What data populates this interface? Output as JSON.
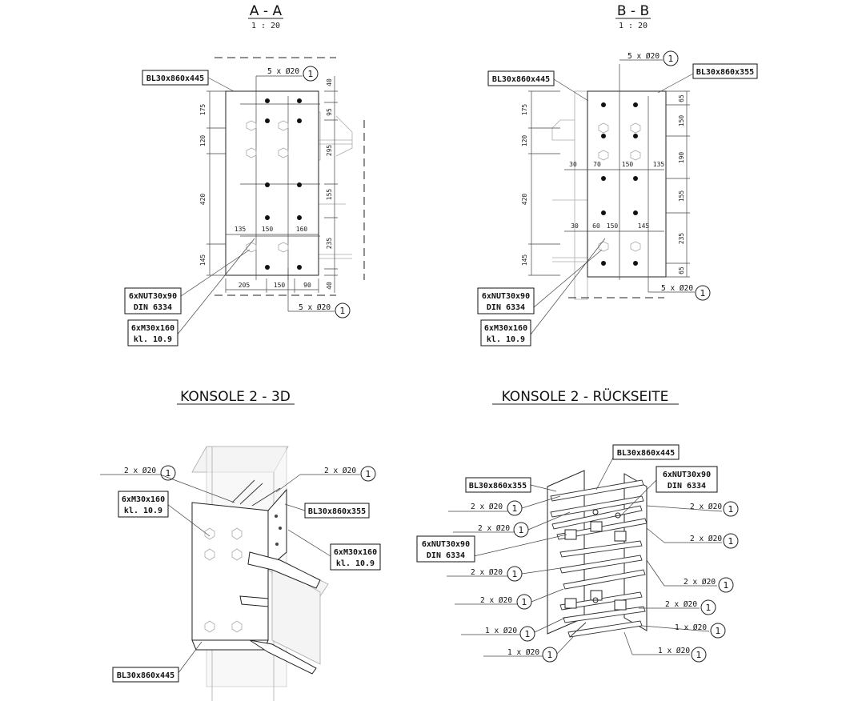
{
  "views": {
    "aa": {
      "title": "A - A",
      "scale": "1 : 20"
    },
    "bb": {
      "title": "B - B",
      "scale": "1 : 20"
    },
    "k3d": {
      "title": "KONSOLE 2 - 3D"
    },
    "krs": {
      "title": "KONSOLE 2 - RÜCKSEITE"
    }
  },
  "labels": {
    "bl445": "BL30x860x445",
    "bl355": "BL30x860x355",
    "nut_1": "6xNUT30x90",
    "nut_2": "DIN 6334",
    "m30_1": "6xM30x160",
    "m30_2": "kl. 10.9"
  },
  "callouts": {
    "c5": "5 x Ø20",
    "c2": "2 x Ø20",
    "c1": "1 x Ø20",
    "mark": "1"
  },
  "dims_aa": {
    "left": [
      "175",
      "120",
      "420",
      "145"
    ],
    "right": [
      "40",
      "95",
      "295",
      "155",
      "235",
      "40"
    ],
    "top_row": [
      "135",
      "150",
      "160"
    ],
    "bottom_row": [
      "205",
      "150",
      "90"
    ]
  },
  "dims_bb": {
    "left": [
      "175",
      "120",
      "420",
      "145"
    ],
    "right": [
      "65",
      "150",
      "190",
      "155",
      "235",
      "65"
    ],
    "row1": [
      "30",
      "70",
      "150",
      "135"
    ],
    "row2": [
      "30",
      "60",
      "150",
      "145"
    ]
  }
}
